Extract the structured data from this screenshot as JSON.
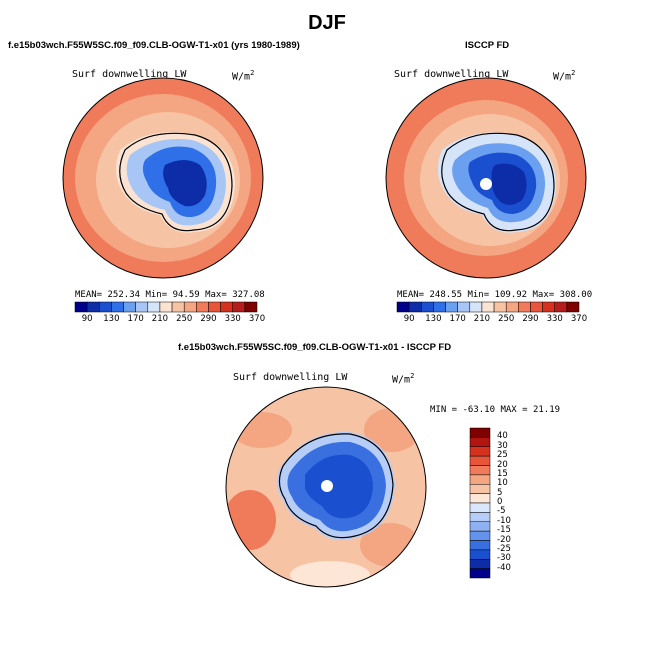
{
  "main_title": "DJF",
  "panels": [
    {
      "title": "f.e15b03wch.F55W5SC.f09_f09.CLB-OGW-T1-x01 (yrs 1980-1989)",
      "variable": "Surf downwelling LW",
      "units_base": "W/m",
      "units_sup": "2",
      "stats": {
        "mean_label": "MEAN=",
        "mean": "252.34",
        "min_label": "Min=",
        "min": "94.59",
        "max_label": "Max=",
        "max": "327.08"
      }
    },
    {
      "title": "ISCCP FD",
      "variable": "Surf downwelling LW",
      "units_base": "W/m",
      "units_sup": "2",
      "stats": {
        "mean_label": "MEAN=",
        "mean": "248.55",
        "min_label": "Min=",
        "min": "109.92",
        "max_label": "Max=",
        "max": "308.00"
      }
    },
    {
      "title": "f.e15b03wch.F55W5SC.f09_f09.CLB-OGW-T1-x01 - ISCCP FD",
      "variable": "Surf downwelling LW",
      "units_base": "W/m",
      "units_sup": "2",
      "stats_text": "MIN = -63.10  MAX =  21.19"
    }
  ],
  "chart_data": [
    {
      "type": "heatmap",
      "projection": "south polar stereographic",
      "title": "Surf downwelling LW (model)",
      "units": "W/m2",
      "mean": 252.34,
      "min": 94.59,
      "max": 327.08,
      "colorbar_ticks": [
        90,
        130,
        170,
        210,
        250,
        290,
        330,
        370
      ]
    },
    {
      "type": "heatmap",
      "projection": "south polar stereographic",
      "title": "Surf downwelling LW (ISCCP FD)",
      "units": "W/m2",
      "mean": 248.55,
      "min": 109.92,
      "max": 308.0,
      "colorbar_ticks": [
        90,
        130,
        170,
        210,
        250,
        290,
        330,
        370
      ]
    },
    {
      "type": "heatmap",
      "projection": "south polar stereographic",
      "title": "Surf downwelling LW (model - ISCCP FD)",
      "units": "W/m2",
      "min": -63.1,
      "max": 21.19,
      "colorbar_ticks": [
        40,
        30,
        25,
        20,
        15,
        10,
        5,
        0,
        -5,
        -10,
        -15,
        -20,
        -25,
        -30,
        -40
      ]
    }
  ],
  "colors": {
    "abs_scale": [
      "#00008b",
      "#0d2ca8",
      "#1a4fcf",
      "#2f6fe8",
      "#6b9ff0",
      "#a7c6f5",
      "#d6e4fa",
      "#fbe3d3",
      "#f7c3a5",
      "#f4a582",
      "#f07b5a",
      "#e8553a",
      "#d6301f",
      "#b71c1c",
      "#7f0000"
    ],
    "diff_scale": [
      "#7f0000",
      "#b0160f",
      "#d6301f",
      "#e8553a",
      "#f07b5a",
      "#f4a582",
      "#f7c3a5",
      "#fde6d6",
      "#d9e6fb",
      "#b5cdf7",
      "#8fb1f1",
      "#6393ea",
      "#3a6fe0",
      "#1a4fcf",
      "#0d2ca8",
      "#00008b"
    ]
  }
}
